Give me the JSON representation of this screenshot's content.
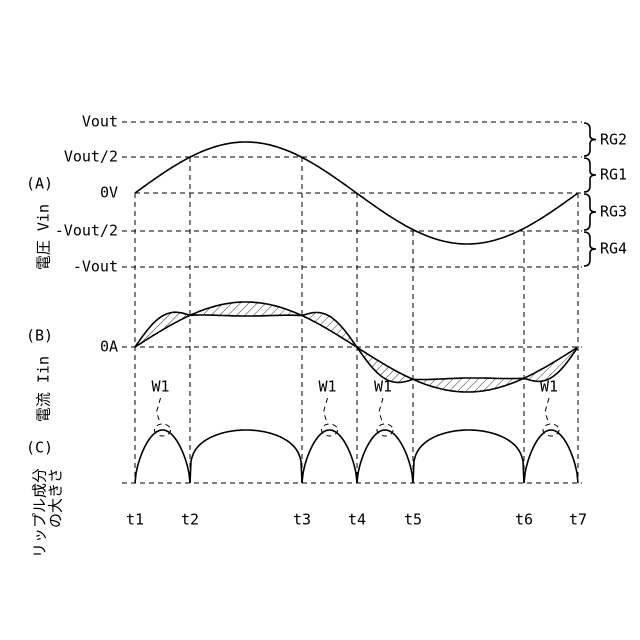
{
  "levels": {
    "vout": "Vout",
    "half": "Vout/2",
    "zero": "0V",
    "neg_half": "-Vout/2",
    "neg": "-Vout"
  },
  "regions": [
    "RG2",
    "RG1",
    "RG3",
    "RG4"
  ],
  "panel_a": {
    "tag": "(A)",
    "label": "電圧 Vin"
  },
  "panel_b": {
    "tag": "(B)",
    "label": "電流 Iin",
    "zero": "0A"
  },
  "panel_c": {
    "tag": "(C)",
    "label_lines": [
      "リップル成分",
      "の大きさ"
    ]
  },
  "markers": [
    "W1",
    "W1",
    "W1",
    "W1"
  ],
  "times": [
    "t1",
    "t2",
    "t3",
    "t4",
    "t5",
    "t6",
    "t7"
  ]
}
